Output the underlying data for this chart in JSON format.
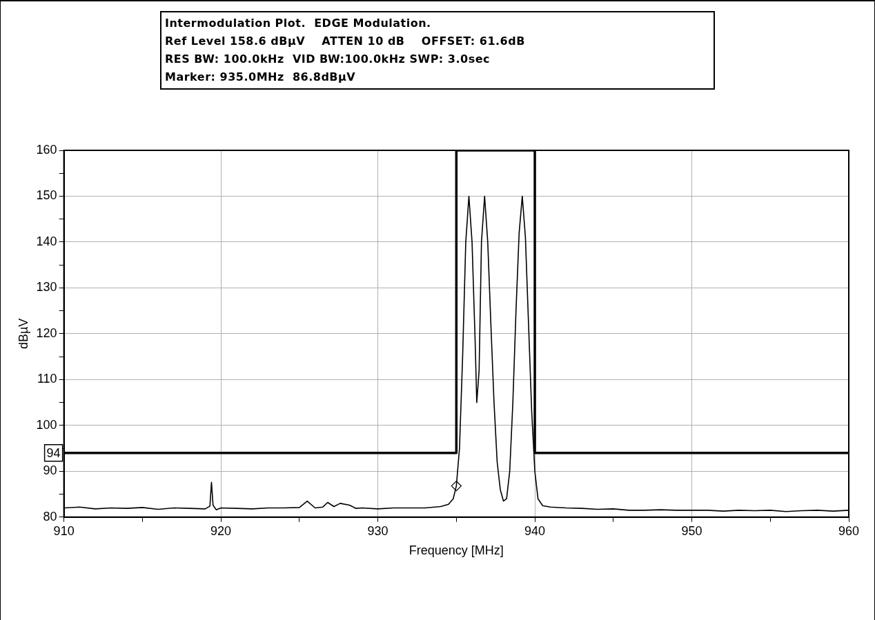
{
  "chart_data": {
    "type": "line",
    "title": "Intermodulation Plot.  EDGE Modulation.",
    "annotations": [
      "Ref Level 158.6 dBµV    ATTEN 10 dB    OFFSET: 61.6dB",
      "RES BW: 100.0kHz  VID BW:100.0kHz SWP: 3.0sec",
      "Marker: 935.0MHz  86.8dBµV",
      {
        "text": "94",
        "x": 910,
        "y": 94
      }
    ],
    "xlabel": "Frequency [MHz]",
    "ylabel": "dBµV",
    "xlim": [
      910,
      960
    ],
    "xticks": [
      910,
      {
        "value": 915,
        "label": null
      },
      920,
      {
        "value": 925,
        "label": null
      },
      930,
      {
        "value": 935,
        "label": null
      },
      940,
      {
        "value": 945,
        "label": null
      },
      950,
      {
        "value": 955,
        "label": null
      },
      960
    ],
    "ylim": [
      80,
      160
    ],
    "yticks": [
      80,
      {
        "value": 85,
        "label": null
      },
      90,
      {
        "value": 95,
        "label": null
      },
      100,
      {
        "value": 105,
        "label": null
      },
      110,
      {
        "value": 115,
        "label": null
      },
      120,
      {
        "value": 125,
        "label": null
      },
      130,
      {
        "value": 135,
        "label": null
      },
      140,
      {
        "value": 145,
        "label": null
      },
      150,
      {
        "value": 155,
        "label": null
      },
      160
    ],
    "grid": true,
    "legend": false,
    "series": [
      {
        "color": "#000000",
        "x": [
          910,
          911,
          912,
          913,
          914,
          915,
          916,
          917,
          918,
          919,
          919.3,
          919.4,
          919.5,
          919.7,
          920,
          921,
          922,
          923,
          924,
          925,
          925.5,
          926,
          926.5,
          926.8,
          927.2,
          927.6,
          928.2,
          928.6,
          929,
          930,
          931,
          932,
          933,
          934,
          934.5,
          934.8,
          935,
          935.2,
          935.4,
          935.6,
          935.8,
          936,
          936.2,
          936.3,
          936.45,
          936.6,
          936.8,
          937,
          937.2,
          937.4,
          937.6,
          937.8,
          938,
          938.2,
          938.4,
          938.6,
          938.8,
          939,
          939.2,
          939.4,
          939.6,
          939.8,
          940,
          940.2,
          940.5,
          941,
          942,
          943,
          944,
          945,
          946,
          947,
          948,
          949,
          950,
          951,
          952,
          953,
          954,
          955,
          956,
          957,
          958,
          959,
          960
        ],
        "values": [
          82,
          82.2,
          81.8,
          82,
          81.9,
          82.1,
          81.7,
          82,
          81.9,
          81.8,
          82.4,
          87.6,
          82.6,
          81.6,
          82,
          81.9,
          81.8,
          82,
          82,
          82.1,
          83.5,
          82,
          82.2,
          83.2,
          82.3,
          83,
          82.6,
          81.9,
          82,
          81.8,
          82,
          82,
          82,
          82.3,
          82.8,
          84,
          86.8,
          95,
          115,
          140,
          150,
          140,
          118,
          105,
          112,
          140,
          150,
          140,
          122,
          105,
          92,
          86,
          83.5,
          84,
          90,
          105,
          125,
          142,
          150,
          141,
          122,
          103,
          90,
          84,
          82.5,
          82.2,
          82,
          81.9,
          81.7,
          81.8,
          81.5,
          81.5,
          81.6,
          81.5,
          81.5,
          81.5,
          81.3,
          81.5,
          81.4,
          81.5,
          81.2,
          81.4,
          81.5,
          81.3,
          81.5
        ]
      },
      {
        "type": "line",
        "color": "#000000",
        "x": [
          910,
          935,
          935,
          940,
          940,
          960
        ],
        "values": [
          94,
          94,
          160,
          160,
          94,
          94
        ]
      },
      {
        "type": "scatter",
        "color": "#000000",
        "marker": "diamond",
        "x": [
          935
        ],
        "values": [
          86.8
        ]
      }
    ]
  }
}
